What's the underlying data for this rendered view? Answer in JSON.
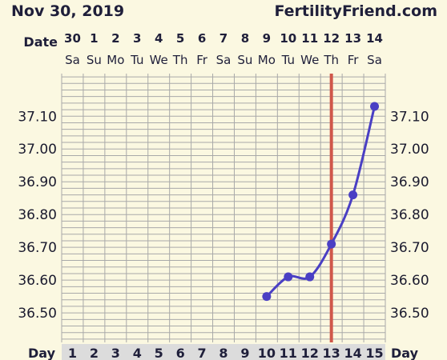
{
  "header": {
    "date": "Nov 30, 2019",
    "site": "FertilityFriend.com"
  },
  "chart_data": {
    "type": "line",
    "row_labels": {
      "date": "Date",
      "day": "Day"
    },
    "dates": [
      "30",
      "1",
      "2",
      "3",
      "4",
      "5",
      "6",
      "7",
      "8",
      "9",
      "10",
      "11",
      "12",
      "13",
      "14"
    ],
    "weekdays": [
      "Sa",
      "Su",
      "Mo",
      "Tu",
      "We",
      "Th",
      "Fr",
      "Sa",
      "Su",
      "Mo",
      "Tu",
      "We",
      "Th",
      "Fr",
      "Sa"
    ],
    "cycle_days": [
      1,
      2,
      3,
      4,
      5,
      6,
      7,
      8,
      9,
      10,
      11,
      12,
      13,
      14,
      15
    ],
    "y_ticks": [
      "36.50",
      "36.60",
      "36.70",
      "36.80",
      "36.90",
      "37.00",
      "37.10"
    ],
    "ylim": [
      36.41,
      37.23
    ],
    "grid": true,
    "series": [
      {
        "x": [
          10,
          11,
          12,
          13,
          14,
          15
        ],
        "y": [
          36.55,
          36.61,
          36.61,
          36.71,
          36.86,
          37.13
        ],
        "color": "#4a3fc4"
      }
    ],
    "vertical_marker": {
      "day": 13,
      "color": "#d0574a"
    }
  },
  "colors": {
    "background": "#fbf8e1",
    "grid": "#a9a9a9",
    "axis_text": "#1a1a2e",
    "line": "#4a3fc4",
    "marker": "#d0574a"
  }
}
